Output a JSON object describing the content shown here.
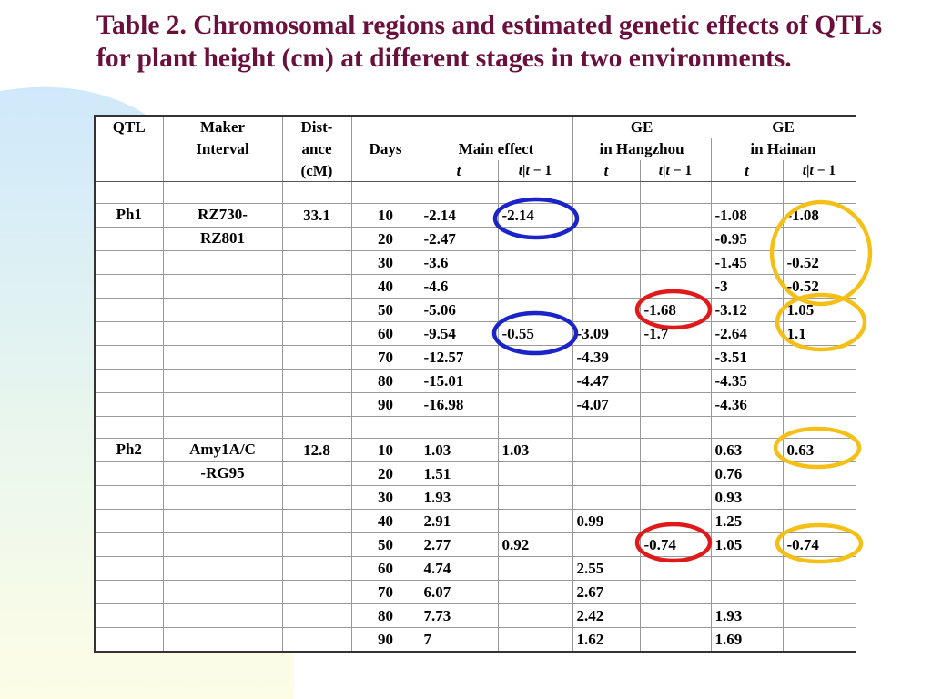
{
  "title": "Table 2. Chromosomal regions and estimated genetic effects of QTLs for plant height (cm) at different stages in two environments.",
  "colors": {
    "title": "#6b0f3c",
    "background_gradient": [
      "#cfe9fb",
      "#fdfde6"
    ],
    "circle_blue": "#1a24c8",
    "circle_red": "#e01a1a",
    "circle_yellow": "#f4c018"
  },
  "header": {
    "qtl": "QTL",
    "maker_1": "Maker",
    "maker_2": "Interval",
    "dist_1": "Dist-",
    "dist_2": "ance",
    "dist_3": "(cM)",
    "days": "Days",
    "main_effect": "Main effect",
    "ge": "GE",
    "in_hangzhou": "in Hangzhou",
    "in_hainan": "in Hainan",
    "t": "t",
    "t_prefix": "t",
    "t_mid": "|t",
    "t_suffix": " − 1"
  },
  "groups": [
    {
      "qtl": "Ph1",
      "interval_1": "RZ730-",
      "interval_2": "RZ801",
      "distance": "33.1",
      "rows": [
        {
          "days": "10",
          "main_t": "-2.14",
          "main_t1": "-2.14",
          "hz_t": "",
          "hz_t1": "",
          "hn_t": "-1.08",
          "hn_t1": "-1.08"
        },
        {
          "days": "20",
          "main_t": "-2.47",
          "main_t1": "",
          "hz_t": "",
          "hz_t1": "",
          "hn_t": "-0.95",
          "hn_t1": ""
        },
        {
          "days": "30",
          "main_t": "-3.6",
          "main_t1": "",
          "hz_t": "",
          "hz_t1": "",
          "hn_t": "-1.45",
          "hn_t1": "-0.52"
        },
        {
          "days": "40",
          "main_t": "-4.6",
          "main_t1": "",
          "hz_t": "",
          "hz_t1": "",
          "hn_t": "-3",
          "hn_t1": "-0.52"
        },
        {
          "days": "50",
          "main_t": "-5.06",
          "main_t1": "",
          "hz_t": "",
          "hz_t1": "-1.68",
          "hn_t": "-3.12",
          "hn_t1": "1.05"
        },
        {
          "days": "60",
          "main_t": "-9.54",
          "main_t1": "-0.55",
          "hz_t": "-3.09",
          "hz_t1": "-1.7",
          "hn_t": "-2.64",
          "hn_t1": "1.1"
        },
        {
          "days": "70",
          "main_t": "-12.57",
          "main_t1": "",
          "hz_t": "-4.39",
          "hz_t1": "",
          "hn_t": "-3.51",
          "hn_t1": ""
        },
        {
          "days": "80",
          "main_t": "-15.01",
          "main_t1": "",
          "hz_t": "-4.47",
          "hz_t1": "",
          "hn_t": "-4.35",
          "hn_t1": ""
        },
        {
          "days": "90",
          "main_t": "-16.98",
          "main_t1": "",
          "hz_t": "-4.07",
          "hz_t1": "",
          "hn_t": "-4.36",
          "hn_t1": ""
        }
      ]
    },
    {
      "qtl": "Ph2",
      "interval_1": "Amy1A/C",
      "interval_2": "-RG95",
      "distance": "12.8",
      "rows": [
        {
          "days": "10",
          "main_t": "1.03",
          "main_t1": "1.03",
          "hz_t": "",
          "hz_t1": "",
          "hn_t": "0.63",
          "hn_t1": "0.63"
        },
        {
          "days": "20",
          "main_t": "1.51",
          "main_t1": "",
          "hz_t": "",
          "hz_t1": "",
          "hn_t": "0.76",
          "hn_t1": ""
        },
        {
          "days": "30",
          "main_t": "1.93",
          "main_t1": "",
          "hz_t": "",
          "hz_t1": "",
          "hn_t": "0.93",
          "hn_t1": ""
        },
        {
          "days": "40",
          "main_t": "2.91",
          "main_t1": "",
          "hz_t": "0.99",
          "hz_t1": "",
          "hn_t": "1.25",
          "hn_t1": ""
        },
        {
          "days": "50",
          "main_t": "2.77",
          "main_t1": "0.92",
          "hz_t": "",
          "hz_t1": "-0.74",
          "hn_t": "1.05",
          "hn_t1": "-0.74"
        },
        {
          "days": "60",
          "main_t": "4.74",
          "main_t1": "",
          "hz_t": "2.55",
          "hz_t1": "",
          "hn_t": "",
          "hn_t1": ""
        },
        {
          "days": "70",
          "main_t": "6.07",
          "main_t1": "",
          "hz_t": "2.67",
          "hz_t1": "",
          "hn_t": "",
          "hn_t1": ""
        },
        {
          "days": "80",
          "main_t": "7.73",
          "main_t1": "",
          "hz_t": "2.42",
          "hz_t1": "",
          "hn_t": "1.93",
          "hn_t1": ""
        },
        {
          "days": "90",
          "main_t": "7",
          "main_t1": "",
          "hz_t": "1.62",
          "hz_t1": "",
          "hn_t": "1.69",
          "hn_t1": ""
        }
      ]
    }
  ]
}
